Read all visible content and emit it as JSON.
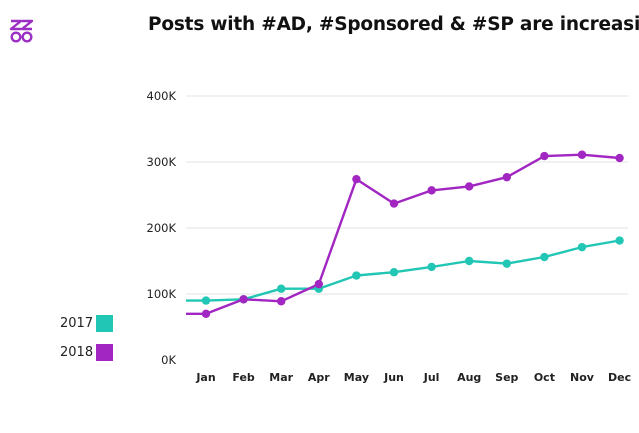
{
  "logo": {
    "icon": "zoo-logo-icon",
    "color": "#9b2fc4"
  },
  "title": "Posts with #AD, #Sponsored & #SP are increasing",
  "legend": [
    {
      "name": "2017",
      "color": "#22c6b4"
    },
    {
      "name": "2018",
      "color": "#a126c2"
    }
  ],
  "chart_data": {
    "type": "line",
    "title": "Posts with #AD, #Sponsored & #SP are increasing",
    "xlabel": "",
    "ylabel": "",
    "categories": [
      "Jan",
      "Feb",
      "Mar",
      "Apr",
      "May",
      "Jun",
      "Jul",
      "Aug",
      "Sep",
      "Oct",
      "Nov",
      "Dec"
    ],
    "yticks": [
      0,
      100000,
      200000,
      300000,
      400000
    ],
    "ytick_labels": [
      "0K",
      "100K",
      "200K",
      "300K",
      "400K"
    ],
    "ylim": [
      0,
      400000
    ],
    "grid": true,
    "series": [
      {
        "name": "2017",
        "color": "#22c6b4",
        "start_value": 90000,
        "values": [
          90000,
          92000,
          108000,
          108000,
          128000,
          133000,
          141000,
          150000,
          146000,
          156000,
          171000,
          181000
        ]
      },
      {
        "name": "2018",
        "color": "#a126c2",
        "start_value": 70000,
        "values": [
          70000,
          92000,
          89000,
          115000,
          274000,
          237000,
          257000,
          263000,
          277000,
          309000,
          311000,
          306000
        ]
      }
    ]
  }
}
